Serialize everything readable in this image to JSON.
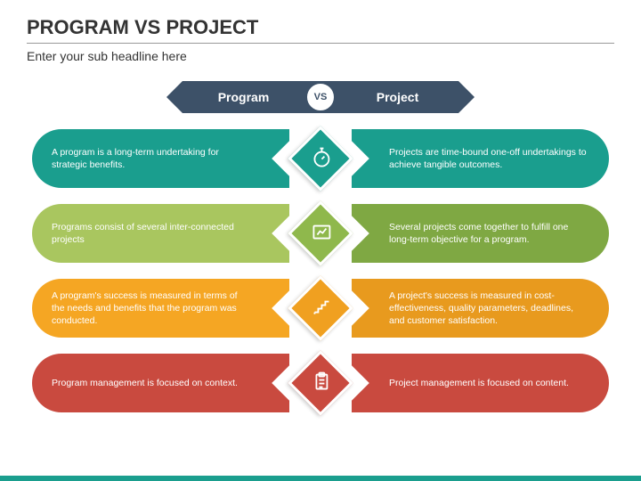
{
  "header": {
    "title": "PROGRAM VS PROJECT",
    "subtitle": "Enter your sub headline here"
  },
  "banner": {
    "left": "Program",
    "right": "Project",
    "vs": "VS",
    "bg_color": "#3d5168",
    "vs_text_color": "#3d5168"
  },
  "rows": [
    {
      "left": "A program is a long-term undertaking for strategic benefits.",
      "right": "Projects are time-bound one-off undertakings to achieve tangible outcomes.",
      "left_color": "#1a9e8e",
      "right_color": "#1a9e8e",
      "diamond_color": "#1a9e8e",
      "icon": "stopwatch"
    },
    {
      "left": "Programs consist of several inter-connected projects",
      "right": "Several projects come together to fulfill one long-term objective for a program.",
      "left_color": "#a9c65f",
      "right_color": "#7fa843",
      "diamond_color": "#8fb84c",
      "icon": "chart"
    },
    {
      "left": "A program's success is measured in terms of the needs and benefits that the program was conducted.",
      "right": "A project's success is measured in cost-effectiveness, quality parameters, deadlines, and customer satisfaction.",
      "left_color": "#f5a623",
      "right_color": "#e89a1e",
      "diamond_color": "#f0a020",
      "icon": "steps"
    },
    {
      "left": "Program management is focused on context.",
      "right": "Project management is focused on content.",
      "left_color": "#c94a3f",
      "right_color": "#c94a3f",
      "diamond_color": "#c94a3f",
      "icon": "clipboard"
    }
  ],
  "footer_color": "#1a9e8e",
  "background_color": "#ffffff"
}
